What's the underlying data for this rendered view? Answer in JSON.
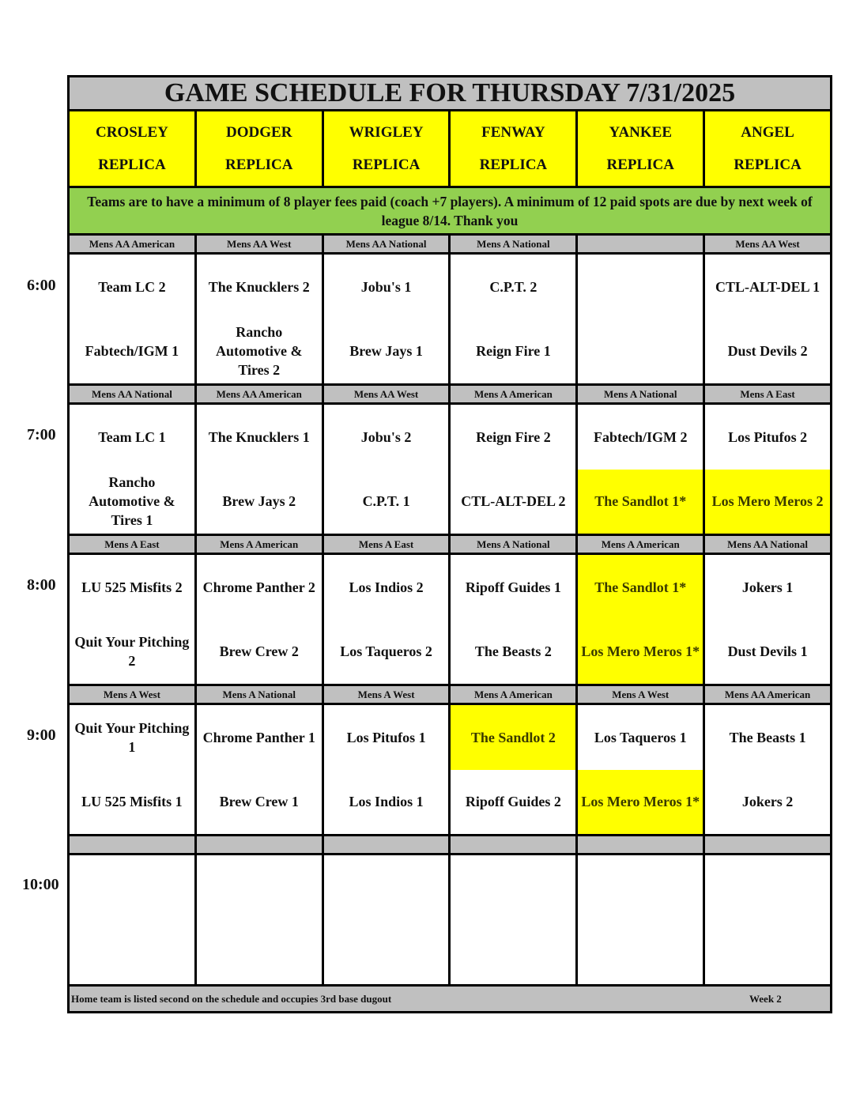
{
  "title": "GAME SCHEDULE FOR THURSDAY 7/31/2025",
  "fields": [
    {
      "name": "CROSLEY",
      "sub": "REPLICA"
    },
    {
      "name": "DODGER",
      "sub": "REPLICA"
    },
    {
      "name": "WRIGLEY",
      "sub": "REPLICA"
    },
    {
      "name": "FENWAY",
      "sub": "REPLICA"
    },
    {
      "name": "YANKEE",
      "sub": "REPLICA"
    },
    {
      "name": "ANGEL",
      "sub": "REPLICA"
    }
  ],
  "notice": "Teams are to have a minimum of 8 player fees paid (coach +7 players). A minimum of 12 paid spots are due by next week of league 8/14. Thank you",
  "highlight_color": "#ffff00",
  "notice_color": "#92d050",
  "slots": [
    {
      "time": "6:00",
      "leagues": [
        "Mens AA American",
        "Mens AA West",
        "Mens AA National",
        "Mens A National",
        "",
        "Mens AA West"
      ],
      "games": [
        {
          "away": "Team LC 2",
          "home": "Fabtech/IGM 1"
        },
        {
          "away": "The Knucklers 2",
          "home": "Rancho Automotive & Tires 2"
        },
        {
          "away": "Jobu's 1",
          "home": "Brew Jays 1"
        },
        {
          "away": "C.P.T. 2",
          "home": "Reign Fire 1"
        },
        {
          "away": "",
          "home": ""
        },
        {
          "away": "CTL-ALT-DEL 1",
          "home": "Dust Devils 2"
        }
      ]
    },
    {
      "time": "7:00",
      "leagues": [
        "Mens AA National",
        "Mens AA American",
        "Mens AA West",
        "Mens A American",
        "Mens A National",
        "Mens A East"
      ],
      "games": [
        {
          "away": "Team LC 1",
          "home": "Rancho Automotive & Tires 1"
        },
        {
          "away": "The Knucklers 1",
          "home": "Brew Jays 2"
        },
        {
          "away": "Jobu's 2",
          "home": "C.P.T. 1"
        },
        {
          "away": "Reign Fire 2",
          "home": "CTL-ALT-DEL 2"
        },
        {
          "away": "Fabtech/IGM 2",
          "home": "The Sandlot 1*",
          "home_highlight": true
        },
        {
          "away": "Los Pitufos 2",
          "home": "Los Mero Meros 2",
          "home_highlight": true
        }
      ]
    },
    {
      "time": "8:00",
      "leagues": [
        "Mens A East",
        "Mens A American",
        "Mens A East",
        "Mens A National",
        "Mens A American",
        "Mens AA National"
      ],
      "games": [
        {
          "away": "LU 525 Misfits 2",
          "home": "Quit Your Pitching 2"
        },
        {
          "away": "Chrome Panther 2",
          "home": "Brew Crew 2"
        },
        {
          "away": "Los Indios 2",
          "home": "Los Taqueros 2"
        },
        {
          "away": "Ripoff Guides 1",
          "home": "The Beasts 2"
        },
        {
          "away": "The Sandlot 1*",
          "home": "Los Mero Meros 1*",
          "away_highlight": true,
          "home_highlight": true
        },
        {
          "away": "Jokers 1",
          "home": "Dust Devils 1"
        }
      ]
    },
    {
      "time": "9:00",
      "leagues": [
        "Mens A West",
        "Mens A National",
        "Mens A West",
        "Mens A American",
        "Mens A West",
        "Mens AA American"
      ],
      "games": [
        {
          "away": "Quit Your Pitching 1",
          "home": "LU 525 Misfits 1"
        },
        {
          "away": "Chrome Panther 1",
          "home": "Brew Crew 1"
        },
        {
          "away": "Los Pitufos 1",
          "home": "Los Indios 1"
        },
        {
          "away": "The Sandlot 2",
          "home": "Ripoff Guides 2",
          "away_highlight": true
        },
        {
          "away": "Los Taqueros 1",
          "home": "Los Mero Meros 1*",
          "home_highlight": true
        },
        {
          "away": "The Beasts 1",
          "home": "Jokers 2"
        }
      ]
    },
    {
      "time": "10:00",
      "leagues": [
        "",
        "",
        "",
        "",
        "",
        ""
      ],
      "games": [
        {
          "away": "",
          "home": ""
        },
        {
          "away": "",
          "home": ""
        },
        {
          "away": "",
          "home": ""
        },
        {
          "away": "",
          "home": ""
        },
        {
          "away": "",
          "home": ""
        },
        {
          "away": "",
          "home": ""
        }
      ]
    }
  ],
  "footer": {
    "note": "Home team is listed second on the schedule and occupies 3rd base dugout",
    "week": "Week 2"
  }
}
